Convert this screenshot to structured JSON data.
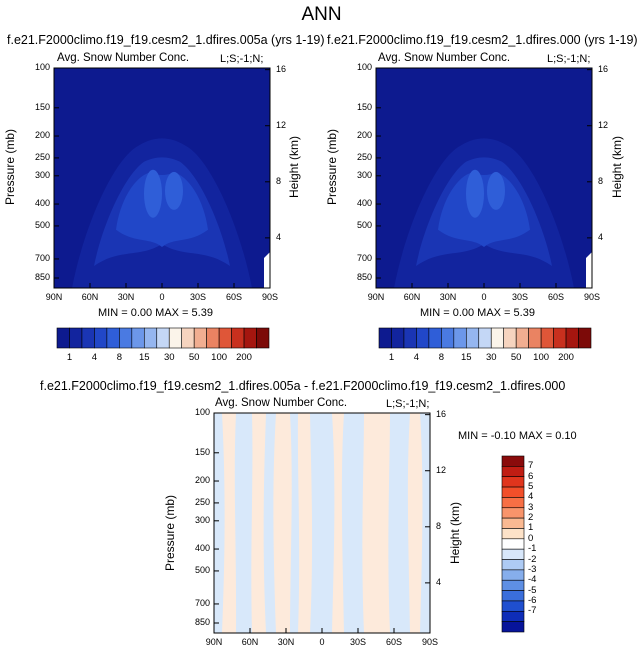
{
  "page": {
    "title": "ANN"
  },
  "panels": [
    {
      "id": "p1",
      "case_title": "f.e21.F2000climo.f19_f19.cesm2_1.dfires.005a (yrs 1-19)",
      "plot_title": "Avg. Snow Number Conc.",
      "level_label": "L;S;-1;N;",
      "y_axis_label": "Pressure (mb)",
      "right_axis_label": "Height (km)",
      "minmax": "MIN =  0.00  MAX =  5.39"
    },
    {
      "id": "p2",
      "case_title": "f.e21.F2000climo.f19_f19.cesm2_1.dfires.000 (yrs 1-19)",
      "plot_title": "Avg. Snow Number Conc.",
      "level_label": "L;S;-1;N;",
      "y_axis_label": "Pressure (mb)",
      "right_axis_label": "Height (km)",
      "minmax": "MIN =  0.00  MAX =  5.39"
    },
    {
      "id": "p3",
      "case_title": "f.e21.F2000climo.f19_f19.cesm2_1.dfires.005a - f.e21.F2000climo.f19_f19.cesm2_1.dfires.000",
      "plot_title": "Avg. Snow Number Conc.",
      "level_label": "L;S;-1;N;",
      "y_axis_label": "Pressure (mb)",
      "right_axis_label": "Height (km)",
      "minmax": "MIN = -0.10  MAX =  0.10"
    }
  ],
  "axes": {
    "pressure_ticks": [
      "100",
      "150",
      "200",
      "250",
      "300",
      "400",
      "500",
      "700",
      "850"
    ],
    "height_ticks": [
      "16",
      "12",
      "8",
      "4"
    ],
    "lat_ticks": [
      "90N",
      "60N",
      "30N",
      "0",
      "30S",
      "60S",
      "90S"
    ]
  },
  "colorbar_main": {
    "labels": [
      "1",
      "4",
      "8",
      "15",
      "30",
      "50",
      "100",
      "200"
    ],
    "colors": [
      "#0d1a8f",
      "#12249e",
      "#1a35b4",
      "#2147c8",
      "#2f5ed8",
      "#4a7ae2",
      "#6c97ea",
      "#95b6f0",
      "#c4d7f6",
      "#fbf4ea",
      "#f6d4bf",
      "#f1ae91",
      "#ea8362",
      "#df5638",
      "#c8301e",
      "#a5160f",
      "#7c0a08"
    ]
  },
  "colorbar_diff": {
    "labels": [
      "7",
      "6",
      "5",
      "4",
      "3",
      "2",
      "1",
      "0",
      "-1",
      "-2",
      "-3",
      "-4",
      "-5",
      "-6",
      "-7"
    ],
    "colors": [
      "#8a0b0b",
      "#c01d13",
      "#e0351d",
      "#f24f2a",
      "#f76f45",
      "#f8946b",
      "#fab992",
      "#fde2c8",
      "#ffffff",
      "#d8e7fa",
      "#aecbf4",
      "#86aeec",
      "#5e8fe4",
      "#3a6edb",
      "#1f4fcf",
      "#0e2db8",
      "#07149a"
    ]
  },
  "chart_data": [
    {
      "type": "heatmap",
      "title": "Avg. Snow Number Conc.",
      "xlabel": "",
      "ylabel": "Pressure (mb)",
      "right_label": "Height (km)",
      "x_ticks": [
        "90N",
        "60N",
        "30N",
        "0",
        "30S",
        "60S",
        "90S"
      ],
      "y_ticks": [
        100,
        150,
        200,
        250,
        300,
        400,
        500,
        700,
        850
      ],
      "ylim": [
        100,
        850
      ],
      "y_scale": "log",
      "contour_levels": [
        1,
        2,
        3,
        4,
        6,
        8,
        10,
        15,
        20,
        30,
        40,
        50,
        70,
        100,
        150,
        200
      ],
      "min": 0.0,
      "max": 5.39,
      "structure": "nearly uniform lowest level (<1) everywhere; slightly higher values (1-4) in a dome centred on the equator from ~200 mb to the surface, peaking ~4 between 300-400 mb near 10N and 10S"
    },
    {
      "type": "heatmap",
      "title": "Avg. Snow Number Conc.",
      "xlabel": "",
      "ylabel": "Pressure (mb)",
      "right_label": "Height (km)",
      "x_ticks": [
        "90N",
        "60N",
        "30N",
        "0",
        "30S",
        "60S",
        "90S"
      ],
      "y_ticks": [
        100,
        150,
        200,
        250,
        300,
        400,
        500,
        700,
        850
      ],
      "ylim": [
        100,
        850
      ],
      "y_scale": "log",
      "contour_levels": [
        1,
        2,
        3,
        4,
        6,
        8,
        10,
        15,
        20,
        30,
        40,
        50,
        70,
        100,
        150,
        200
      ],
      "min": 0.0,
      "max": 5.39,
      "structure": "same pattern as panel 1"
    },
    {
      "type": "heatmap",
      "title": "Avg. Snow Number Conc.",
      "xlabel": "",
      "ylabel": "Pressure (mb)",
      "right_label": "Height (km)",
      "x_ticks": [
        "90N",
        "60N",
        "30N",
        "0",
        "30S",
        "60S",
        "90S"
      ],
      "y_ticks": [
        100,
        150,
        200,
        250,
        300,
        400,
        500,
        700,
        850
      ],
      "ylim": [
        100,
        850
      ],
      "y_scale": "log",
      "contour_levels": [
        -7,
        -6,
        -5,
        -4,
        -3,
        -2,
        -1,
        0,
        1,
        2,
        3,
        4,
        5,
        6,
        7
      ],
      "min": -0.1,
      "max": 0.1,
      "structure": "vertical bands alternating between the 0 to 1 class and the -1 to 0 class across all latitudes"
    }
  ]
}
